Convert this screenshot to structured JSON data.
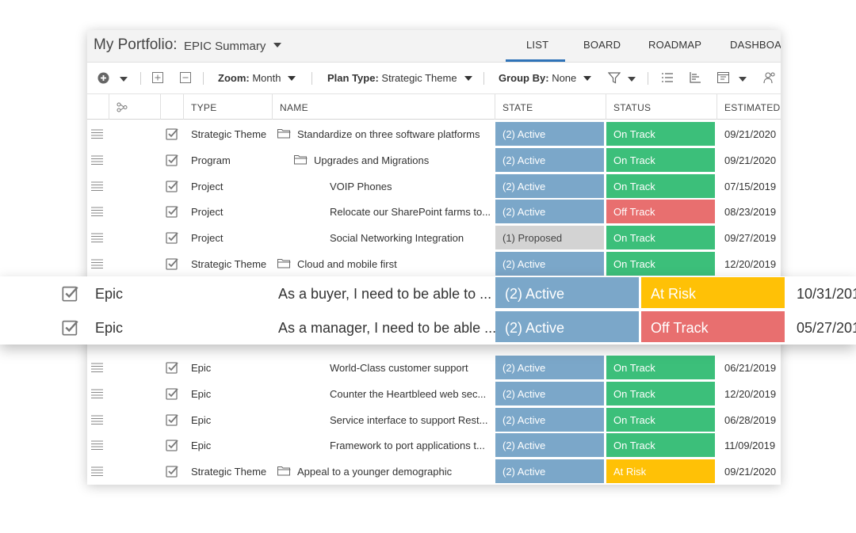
{
  "header": {
    "title": "My Portfolio:",
    "view": "EPIC Summary",
    "tabs": [
      "LIST",
      "BOARD",
      "ROADMAP",
      "DASHBOARD"
    ]
  },
  "toolbar": {
    "zoom_label": "Zoom:",
    "zoom_value": "Month",
    "plan_label": "Plan Type:",
    "plan_value": "Strategic Theme",
    "group_label": "Group By:",
    "group_value": "None"
  },
  "columns": {
    "type": "TYPE",
    "name": "NAME",
    "state": "STATE",
    "status": "STATUS",
    "estimated": "ESTIMATED E"
  },
  "rows": [
    {
      "type": "Strategic Theme",
      "name": "Standardize on three software platforms",
      "state": "(2) Active",
      "status": "On Track",
      "date": "09/21/2020"
    },
    {
      "type": "Program",
      "name": "Upgrades and Migrations",
      "state": "(2) Active",
      "status": "On Track",
      "date": "09/21/2020"
    },
    {
      "type": "Project",
      "name": "VOIP Phones",
      "state": "(2) Active",
      "status": "On Track",
      "date": "07/15/2019"
    },
    {
      "type": "Project",
      "name": "Relocate our SharePoint farms to...",
      "state": "(2) Active",
      "status": "Off Track",
      "date": "08/23/2019"
    },
    {
      "type": "Project",
      "name": "Social Networking Integration",
      "state": "(1) Proposed",
      "status": "On Track",
      "date": "09/27/2019"
    },
    {
      "type": "Strategic Theme",
      "name": "Cloud and mobile first",
      "state": "(2) Active",
      "status": "On Track",
      "date": "12/20/2019"
    },
    {
      "type": "Epic",
      "name": "World-Class customer support",
      "state": "(2) Active",
      "status": "On Track",
      "date": "06/21/2019"
    },
    {
      "type": "Epic",
      "name": "Counter the Heartbleed web sec...",
      "state": "(2) Active",
      "status": "On Track",
      "date": "12/20/2019"
    },
    {
      "type": "Epic",
      "name": "Service interface to support Rest...",
      "state": "(2) Active",
      "status": "On Track",
      "date": "06/28/2019"
    },
    {
      "type": "Epic",
      "name": "Framework to port applications t...",
      "state": "(2) Active",
      "status": "On Track",
      "date": "11/09/2019"
    },
    {
      "type": "Strategic Theme",
      "name": "Appeal to a younger demographic",
      "state": "(2) Active",
      "status": "At Risk",
      "date": "09/21/2020"
    }
  ],
  "overlay_rows": [
    {
      "type": "Epic",
      "name": "As a buyer, I need to be able to ...",
      "state": "(2) Active",
      "status": "At Risk",
      "date": "10/31/201"
    },
    {
      "type": "Epic",
      "name": "As a manager, I need to be able ...",
      "state": "(2) Active",
      "status": "Off Track",
      "date": "05/27/201"
    }
  ],
  "colors": {
    "active": "#7ba7c9",
    "proposed": "#d3d3d3",
    "on_track": "#3cbf7a",
    "off_track": "#e86f6f",
    "at_risk": "#ffc106",
    "tab_accent": "#2f73b8"
  }
}
